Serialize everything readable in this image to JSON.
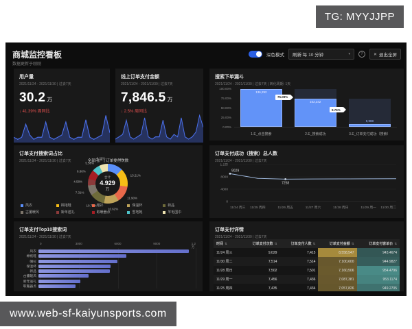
{
  "overlay": {
    "tg_badge": "TG: MYYJJPP",
    "site_badge": "www.web-sf-kaiyunsports.com"
  },
  "header": {
    "title": "商城监控看板",
    "subtitle": "数据更新于刚刚",
    "dark_mode_label": "深色模式",
    "refresh_label": "刷新:每 10 分钟",
    "exit_fullscreen_label": "退出全屏",
    "close_glyph": "✕",
    "caret_glyph": "▾",
    "help_glyph": "?"
  },
  "kpis": [
    {
      "title": "用户量",
      "period": "2021/11/24 - 2021/11/30 | 过去7天",
      "value": "30.2",
      "unit": "万",
      "change": "↓ 41.39% 周同比",
      "spark": [
        2,
        1,
        2,
        8,
        3,
        1,
        2,
        2,
        9,
        2,
        1,
        2,
        3,
        9,
        2,
        1,
        2,
        2,
        10,
        2,
        1,
        2,
        3,
        12,
        4
      ]
    },
    {
      "title": "线上订单支付金额",
      "period": "2021/11/24 - 2021/11/30 | 过去7天",
      "value": "7,846.5",
      "unit": "万",
      "change": "↓ 2.5% 周同比",
      "spark": [
        1,
        2,
        3,
        9,
        2,
        1,
        2,
        3,
        10,
        2,
        1,
        2,
        2,
        9,
        2,
        1,
        3,
        2,
        10,
        2,
        1,
        2,
        4,
        11,
        6
      ]
    }
  ],
  "chart_data": [
    {
      "type": "bar",
      "variant": "funnel",
      "title": "搜索下单漏斗",
      "period": "2021/11/24 - 2021/11/30 | 过去7天 | 转化周期: 1天",
      "y_ticks": [
        "100.00%",
        "75.00%",
        "50.00%",
        "25.00%",
        "0.00%"
      ],
      "stages": [
        {
          "label": "1.E_点击搜索",
          "value": "136,292",
          "pct": 100
        },
        {
          "label": "2.E_搜索成功",
          "value": "102,342",
          "pct": 75.09
        },
        {
          "label": "3.E_订单支付成功（搜索）",
          "value": "9,988",
          "pct": 7.3
        }
      ],
      "conversions": [
        "75.09%",
        "9.76%"
      ],
      "backdrops": [
        {
          "top": 0,
          "h": 0
        },
        {
          "top": 0,
          "h": 100
        },
        {
          "top": 25,
          "h": 75
        }
      ],
      "bar_color": "#6293f8"
    },
    {
      "type": "pie",
      "title": "订单支付搜索词占比",
      "period": "2021/11/24 - 2021/11/30 | 过去7天",
      "header": "全部用户 | 订单支付次数",
      "center_label": "合计",
      "center_value": "4.929",
      "center_unit": "万",
      "slices": [
        {
          "label": "风衣",
          "value": 10.89,
          "pct": "10.89%",
          "color": "#5B8FF9"
        },
        {
          "label": "棉拖鞋",
          "value": 13.21,
          "pct": "13.21%",
          "color": "#F6BD16"
        },
        {
          "label": "帽衫",
          "value": 11.9,
          "pct": "11.90%",
          "color": "#E8684A"
        },
        {
          "label": "保温杯",
          "value": 10.62,
          "pct": "10.62%",
          "color": "#BFA45A"
        },
        {
          "label": "新品",
          "value": 10.77,
          "pct": "10.77%",
          "color": "#6E6B3A"
        },
        {
          "label": "古董暖风",
          "value": 7.31,
          "pct": "7.31%",
          "color": "#7D756A"
        },
        {
          "label": "新年送礼",
          "value": 4.58,
          "pct": "4.58%",
          "color": "#8B3A3A"
        },
        {
          "label": "取暖器点",
          "value": 6.86,
          "pct": "6.86%",
          "color": "#A61D24"
        },
        {
          "label": "雪地靴",
          "value": 5.58,
          "pct": "5.58%",
          "color": "#4EC3C9"
        },
        {
          "label": "羊毛围巾",
          "value": 6.2,
          "pct": "6.20%",
          "color": "#EDE2B0"
        }
      ]
    },
    {
      "type": "line",
      "title": "订单支付成功（搜索）总人数",
      "period": "2021/11/24 - 2021/11/30 | 过去7天",
      "x": [
        "11/24 周三",
        "11/25 周四",
        "11/26 周五",
        "11/27 周六",
        "11/28 周日",
        "11/29 周一",
        "11/30 周二"
      ],
      "values": [
        9029,
        7500,
        7258,
        7300,
        7330,
        7360,
        7400
      ],
      "point_labels": [
        {
          "index": 0,
          "text": "9029"
        },
        {
          "index": 2,
          "text": "7258"
        }
      ],
      "y_ticks": [
        {
          "v": 12000,
          "label": "1.2万"
        },
        {
          "v": 8000,
          "label": "8000"
        },
        {
          "v": 4000,
          "label": "4000"
        },
        {
          "v": 0,
          "label": "0"
        }
      ],
      "ylim": [
        0,
        12000
      ],
      "line_color": "#9bb4d8"
    },
    {
      "type": "bar",
      "variant": "horizontal",
      "title": "订单支付Top10搜索词",
      "period": "2021/11/24 - 2021/11/30 | 过去7天",
      "x_ticks": [
        {
          "v": 0,
          "label": "0"
        },
        {
          "v": 3000,
          "label": "3000"
        },
        {
          "v": 6000,
          "label": "6000"
        },
        {
          "v": 9000,
          "label": "9000"
        },
        {
          "v": 12000,
          "label": "1.2万"
        }
      ],
      "xlim": [
        0,
        12000
      ],
      "categories": [
        "风衣",
        "棉拖鞋",
        "帽衫",
        "保温杯",
        "新品",
        "古董暖风",
        "新年送礼",
        "取暖器点"
      ],
      "values": [
        11500,
        6700,
        6000,
        5500,
        5450,
        3800,
        3200,
        2850
      ]
    },
    {
      "type": "table",
      "title": "订单支付详情",
      "period": "2021/11/24 - 2021/11/30 | 过去7天",
      "sort_glyph": "⇅",
      "columns": [
        "时间",
        "订单支付次数",
        "订单支付人数",
        "订单支付金额",
        "订单支付客单价"
      ],
      "rows": [
        [
          "11/24 周三",
          "9,029",
          "7,415",
          "8,558,547",
          "943.4674"
        ],
        [
          "11/30 周二",
          "7,514",
          "7,514",
          "7,100,600",
          "944.9827"
        ],
        [
          "11/28 周日",
          "7,502",
          "7,501",
          "7,160,506",
          "954.4796"
        ],
        [
          "11/29 周一",
          "7,456",
          "7,436",
          "7,087,381",
          "953.1174"
        ],
        [
          "11/25 周四",
          "7,435",
          "7,434",
          "7,057,826",
          "949.2705"
        ]
      ],
      "heat_columns": {
        "amount_color": "166,138,60",
        "price_color": "73,138,134"
      }
    }
  ]
}
